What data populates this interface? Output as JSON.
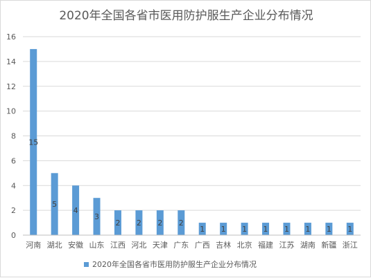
{
  "chart_data": {
    "type": "bar",
    "title": "2020年全国各省市医用防护服生产企业分布情况",
    "categories": [
      "河南",
      "湖北",
      "安徽",
      "山东",
      "江西",
      "河北",
      "天津",
      "广东",
      "广西",
      "吉林",
      "北京",
      "福建",
      "江苏",
      "湖南",
      "新疆",
      "浙江"
    ],
    "series": [
      {
        "name": "2020年全国各省市医用防护服生产企业分布情况",
        "values": [
          15,
          5,
          4,
          3,
          2,
          2,
          2,
          2,
          1,
          1,
          1,
          1,
          1,
          1,
          1,
          1
        ],
        "color": "#5b9bd5"
      }
    ],
    "ylim": [
      0,
      16
    ],
    "yticks": [
      "0",
      "2",
      "4",
      "6",
      "8",
      "10",
      "12",
      "14",
      "16"
    ],
    "grid": true,
    "legend": "bottom",
    "data_labels": true
  }
}
